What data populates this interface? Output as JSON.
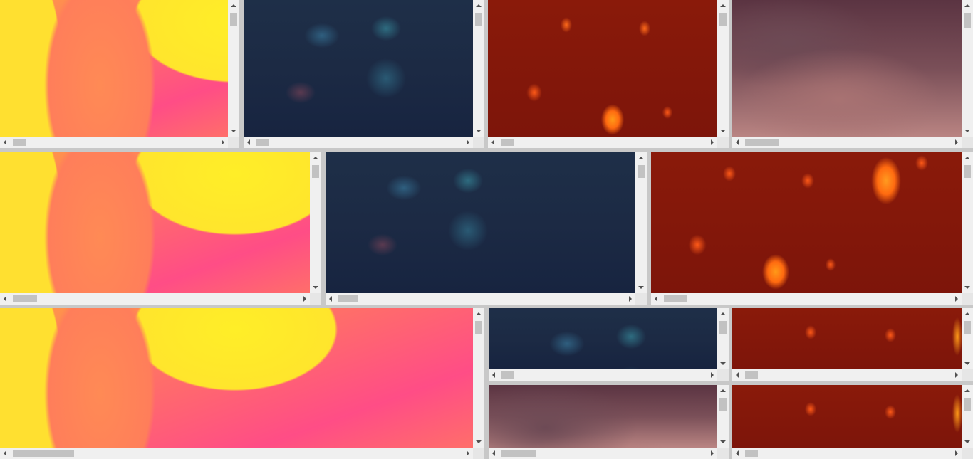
{
  "window": {
    "title": ""
  },
  "viewports": [
    {
      "id": "r1c1",
      "image": "yellow"
    },
    {
      "id": "r1c2",
      "image": "blue"
    },
    {
      "id": "r1c3",
      "image": "red"
    },
    {
      "id": "r1c4",
      "image": "mauve"
    },
    {
      "id": "r2c1",
      "image": "yellow"
    },
    {
      "id": "r2c2",
      "image": "blue"
    },
    {
      "id": "r2c3",
      "image": "red2"
    },
    {
      "id": "r3c1",
      "image": "yellow"
    },
    {
      "id": "r3c2",
      "image": "blue"
    },
    {
      "id": "r3c3",
      "image": "red3"
    },
    {
      "id": "r4c2",
      "image": "mauve"
    },
    {
      "id": "r4c3",
      "image": "red3"
    }
  ],
  "icons": {
    "scroll_up": "arrow-up-icon",
    "scroll_down": "arrow-down-icon",
    "scroll_left": "arrow-left-icon",
    "scroll_right": "arrow-right-icon"
  },
  "colors": {
    "background": "#c8c8c8",
    "scrollbar": "#f0f0f0",
    "thumb": "#c2c2c2"
  }
}
